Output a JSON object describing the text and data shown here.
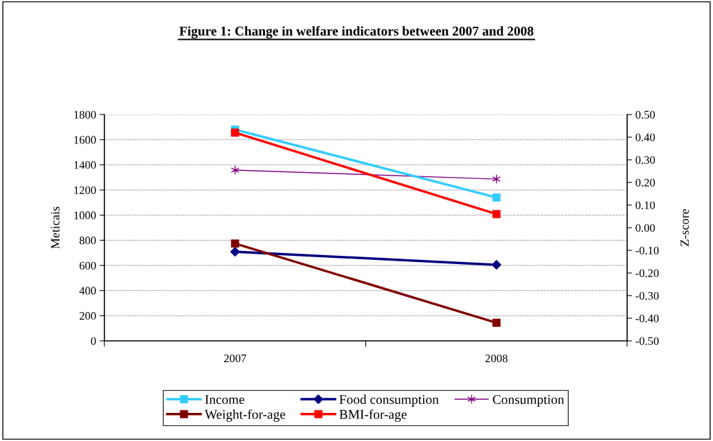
{
  "chart_data": {
    "type": "line",
    "title": "Figure 1: Change in welfare indicators between 2007 and 2008",
    "ylabel": "Meticais",
    "y2label": "Z-score",
    "categories": [
      "2007",
      "2008"
    ],
    "series": [
      {
        "name": "Income",
        "color": "#33ccff",
        "marker": "square",
        "values": [
          1680,
          1140
        ]
      },
      {
        "name": "Food consumption",
        "color": "#000080",
        "marker": "diamond",
        "values": [
          709,
          605
        ]
      },
      {
        "name": "Consumption",
        "color": "#800080",
        "marker": "cross",
        "values": [
          1358,
          1287
        ]
      },
      {
        "name": "Weight-for-age",
        "color": "#800000",
        "marker": "square",
        "axis": "y2",
        "values": [
          -0.07,
          -0.42
        ]
      },
      {
        "name": "BMI-for-age",
        "color": "#ff0000",
        "marker": "square",
        "axis": "y2",
        "values": [
          0.42,
          0.06
        ]
      }
    ],
    "ylim": [
      0,
      1800
    ],
    "yticks": [
      0,
      200,
      400,
      600,
      800,
      1000,
      1200,
      1400,
      1600,
      1800
    ],
    "y2lim": [
      -0.5,
      0.5
    ],
    "y2ticks": [
      {
        "value": -0.5,
        "label": "-0.50"
      },
      {
        "value": -0.4,
        "label": "-0.40"
      },
      {
        "value": -0.3,
        "label": "-0.30"
      },
      {
        "value": -0.2,
        "label": "-0.20"
      },
      {
        "value": -0.1,
        "label": "-0.10"
      },
      {
        "value": 0,
        "label": "0.00"
      },
      {
        "value": 0.1,
        "label": "0.10"
      },
      {
        "value": 0.2,
        "label": "0.20"
      },
      {
        "value": 0.3,
        "label": "0.30"
      },
      {
        "value": 0.4,
        "label": "0.40"
      },
      {
        "value": 0.5,
        "label": "0.50"
      }
    ],
    "grid": "y",
    "legend": "bottom"
  }
}
